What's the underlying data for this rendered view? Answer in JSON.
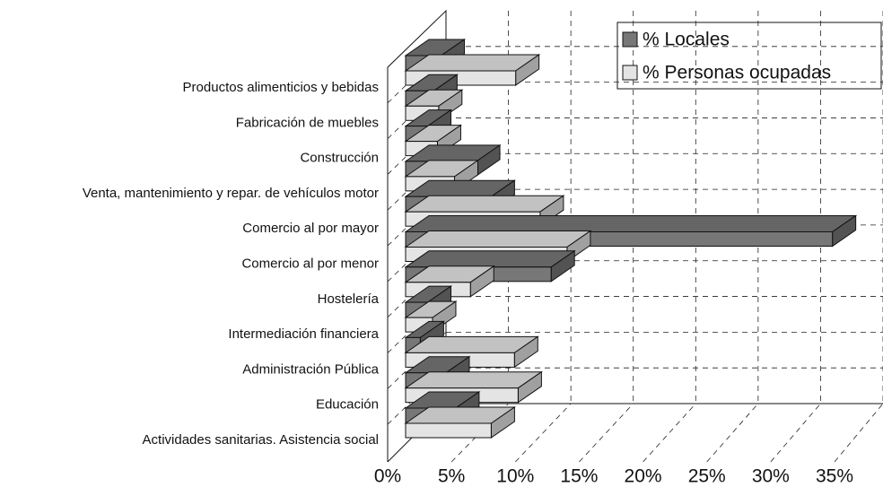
{
  "chart_data": {
    "type": "bar3d",
    "categories": [
      "Productos alimenticios y bebidas",
      "Fabricación de muebles",
      "Construcción",
      "Venta, mantenimiento y repar. de vehículos motor",
      "Comercio al por mayor",
      "Comercio al por menor",
      "Hostelería",
      "Intermediación financiera",
      "Administración Pública",
      "Educación",
      "Actividades sanitarias. Asistencia social"
    ],
    "series": [
      {
        "name": "% Locales",
        "color": "#777777",
        "values": [
          2.9,
          2.3,
          1.8,
          5.8,
          7.0,
          34.9,
          11.9,
          1.8,
          1.2,
          3.3,
          4.1
        ]
      },
      {
        "name": "% Personas ocupadas",
        "color": "#e4e4e4",
        "values": [
          9.0,
          2.7,
          2.6,
          4.0,
          11.0,
          13.2,
          5.3,
          2.2,
          8.9,
          9.2,
          7.0
        ]
      }
    ],
    "xlim": [
      0,
      35
    ],
    "xticks": [
      {
        "value": 0,
        "label": "0%"
      },
      {
        "value": 5,
        "label": "5%"
      },
      {
        "value": 10,
        "label": "10%"
      },
      {
        "value": 15,
        "label": "15%"
      },
      {
        "value": 20,
        "label": "20%"
      },
      {
        "value": 25,
        "label": "25%"
      },
      {
        "value": 30,
        "label": "30%"
      },
      {
        "value": 35,
        "label": "35%"
      }
    ],
    "grid": true,
    "legend": "top-right"
  }
}
